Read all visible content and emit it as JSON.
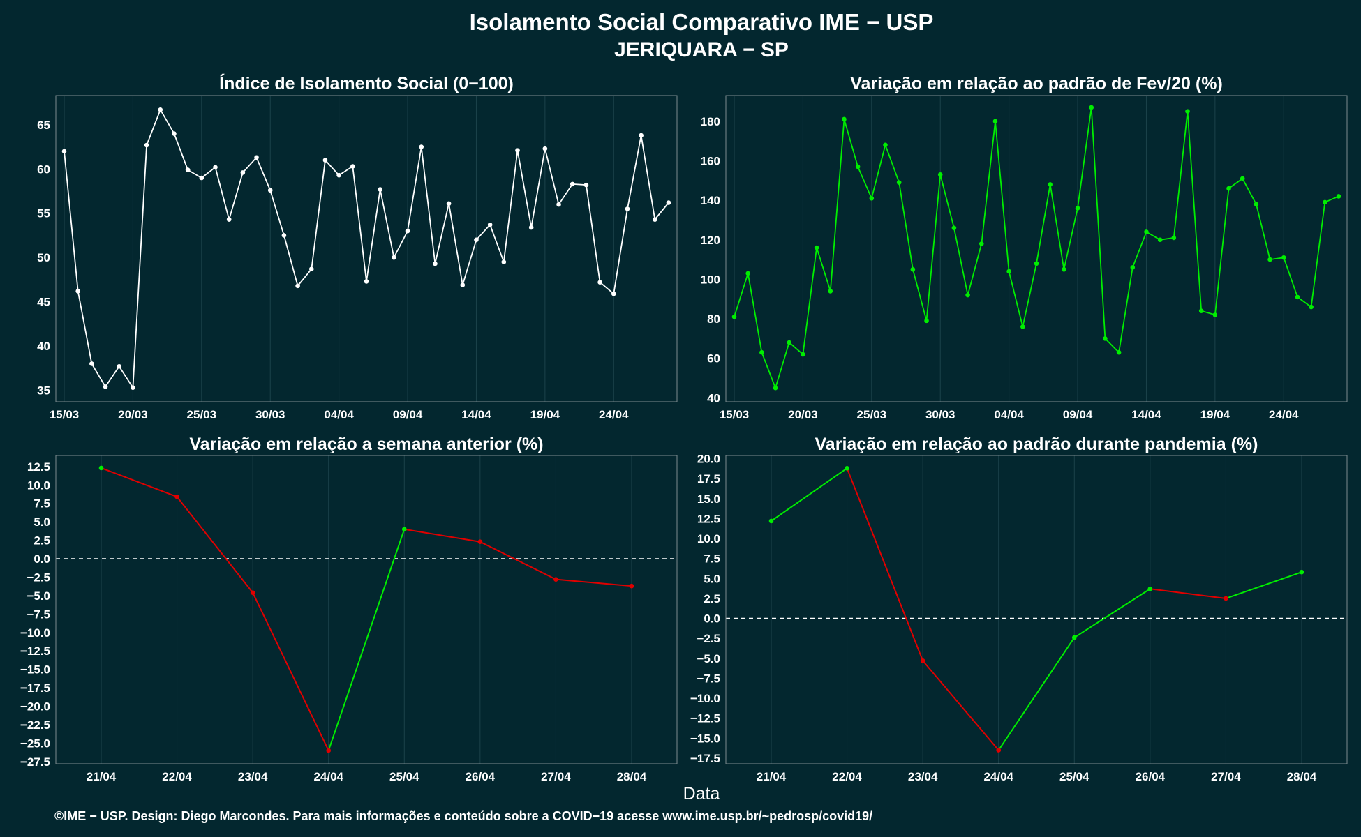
{
  "title": "Isolamento Social Comparativo IME − USP",
  "subtitle": "JERIQUARA − SP",
  "xlabel": "Data",
  "footer": "©IME − USP. Design: Diego Marcondes. Para mais informações e conteúdo sobre a COVID−19 acesse www.ime.usp.br/~pedrosp/covid19/",
  "colors": {
    "background": "#03272f",
    "white": "#ffffff",
    "green": "#00ee00",
    "red": "#e00000"
  },
  "chart_data": [
    {
      "id": "p1",
      "type": "line",
      "title": "Índice de Isolamento Social (0−100)",
      "x": [
        "15/03",
        "16/03",
        "17/03",
        "18/03",
        "19/03",
        "20/03",
        "21/03",
        "22/03",
        "23/03",
        "24/03",
        "25/03",
        "26/03",
        "27/03",
        "28/03",
        "29/03",
        "30/03",
        "31/03",
        "01/04",
        "02/04",
        "03/04",
        "04/04",
        "05/04",
        "06/04",
        "07/04",
        "08/04",
        "09/04",
        "10/04",
        "11/04",
        "12/04",
        "13/04",
        "14/04",
        "15/04",
        "16/04",
        "17/04",
        "18/04",
        "19/04",
        "20/04",
        "21/04",
        "22/04",
        "23/04",
        "24/04",
        "25/04",
        "26/04",
        "27/04",
        "28/04"
      ],
      "series": [
        {
          "color": "#ffffff",
          "values": [
            62.0,
            46.2,
            38.0,
            35.4,
            37.7,
            35.3,
            62.7,
            66.7,
            64.0,
            59.9,
            59.0,
            60.2,
            54.3,
            59.6,
            61.3,
            57.6,
            52.5,
            46.8,
            48.7,
            61.0,
            59.3,
            60.3,
            47.3,
            57.7,
            50.0,
            53.0,
            62.5,
            49.3,
            56.1,
            46.9,
            52.0,
            53.7,
            49.5,
            62.1,
            53.4,
            62.3,
            56.0,
            58.3,
            58.2,
            47.2,
            45.9,
            55.5,
            63.8,
            54.3,
            56.2
          ]
        }
      ],
      "xticks": [
        "15/03",
        "20/03",
        "25/03",
        "30/03",
        "04/04",
        "09/04",
        "14/04",
        "19/04",
        "24/04"
      ],
      "yticks": [
        35,
        40,
        45,
        50,
        55,
        60,
        65
      ],
      "ylim": [
        33.7,
        68.3
      ]
    },
    {
      "id": "p2",
      "type": "line",
      "title": "Variação em relação ao padrão de Fev/20 (%)",
      "x": [
        "15/03",
        "16/03",
        "17/03",
        "18/03",
        "19/03",
        "20/03",
        "21/03",
        "22/03",
        "23/03",
        "24/03",
        "25/03",
        "26/03",
        "27/03",
        "28/03",
        "29/03",
        "30/03",
        "31/03",
        "01/04",
        "02/04",
        "03/04",
        "04/04",
        "05/04",
        "06/04",
        "07/04",
        "08/04",
        "09/04",
        "10/04",
        "11/04",
        "12/04",
        "13/04",
        "14/04",
        "15/04",
        "16/04",
        "17/04",
        "18/04",
        "19/04",
        "20/04",
        "21/04",
        "22/04",
        "23/04",
        "24/04",
        "25/04",
        "26/04",
        "27/04",
        "28/04"
      ],
      "series": [
        {
          "color": "#00ee00",
          "values": [
            81,
            103,
            63,
            45,
            68,
            62,
            116,
            94,
            181,
            157,
            141,
            168,
            149,
            105,
            79,
            153,
            126,
            92,
            118,
            180,
            104,
            76,
            108,
            148,
            105,
            136,
            187,
            70,
            63,
            106,
            124,
            120,
            121,
            185,
            84,
            82,
            146,
            151,
            138,
            110,
            111,
            91,
            86,
            139,
            142
          ]
        }
      ],
      "xticks": [
        "15/03",
        "20/03",
        "25/03",
        "30/03",
        "04/04",
        "09/04",
        "14/04",
        "19/04",
        "24/04"
      ],
      "yticks": [
        40,
        60,
        80,
        100,
        120,
        140,
        160,
        180
      ],
      "ylim": [
        38,
        193
      ]
    },
    {
      "id": "p3",
      "type": "line",
      "title": "Variação em relação a semana anterior (%)",
      "x": [
        "21/04",
        "22/04",
        "23/04",
        "24/04",
        "25/04",
        "26/04",
        "27/04",
        "28/04"
      ],
      "series": [
        {
          "values": [
            12.3,
            8.4,
            -4.6,
            -26.0,
            4.0,
            2.3,
            -2.8,
            -3.7
          ]
        }
      ],
      "segment_colors": {
        "up": "#00ee00",
        "down": "#e00000"
      },
      "xticks": [
        "21/04",
        "22/04",
        "23/04",
        "24/04",
        "25/04",
        "26/04",
        "27/04",
        "28/04"
      ],
      "yticks": [
        12.5,
        10.0,
        7.5,
        5.0,
        2.5,
        0.0,
        -2.5,
        -5.0,
        -7.5,
        -10.0,
        -12.5,
        -15.0,
        -17.5,
        -20.0,
        -22.5,
        -25.0,
        -27.5
      ],
      "ylim": [
        -27.8,
        14.0
      ],
      "hline": 0
    },
    {
      "id": "p4",
      "type": "line",
      "title": "Variação em relação ao padrão durante pandemia (%)",
      "x": [
        "21/04",
        "22/04",
        "23/04",
        "24/04",
        "25/04",
        "26/04",
        "27/04",
        "28/04"
      ],
      "series": [
        {
          "values": [
            12.2,
            18.8,
            -5.3,
            -16.5,
            -2.4,
            3.7,
            2.5,
            5.8
          ]
        }
      ],
      "segment_colors": {
        "up": "#00ee00",
        "down": "#e00000"
      },
      "xticks": [
        "21/04",
        "22/04",
        "23/04",
        "24/04",
        "25/04",
        "26/04",
        "27/04",
        "28/04"
      ],
      "yticks": [
        20.0,
        17.5,
        15.0,
        12.5,
        10.0,
        7.5,
        5.0,
        2.5,
        0.0,
        -2.5,
        -5.0,
        -7.5,
        -10.0,
        -12.5,
        -15.0,
        -17.5
      ],
      "ylim": [
        -18.2,
        20.4
      ],
      "hline": 0
    }
  ]
}
